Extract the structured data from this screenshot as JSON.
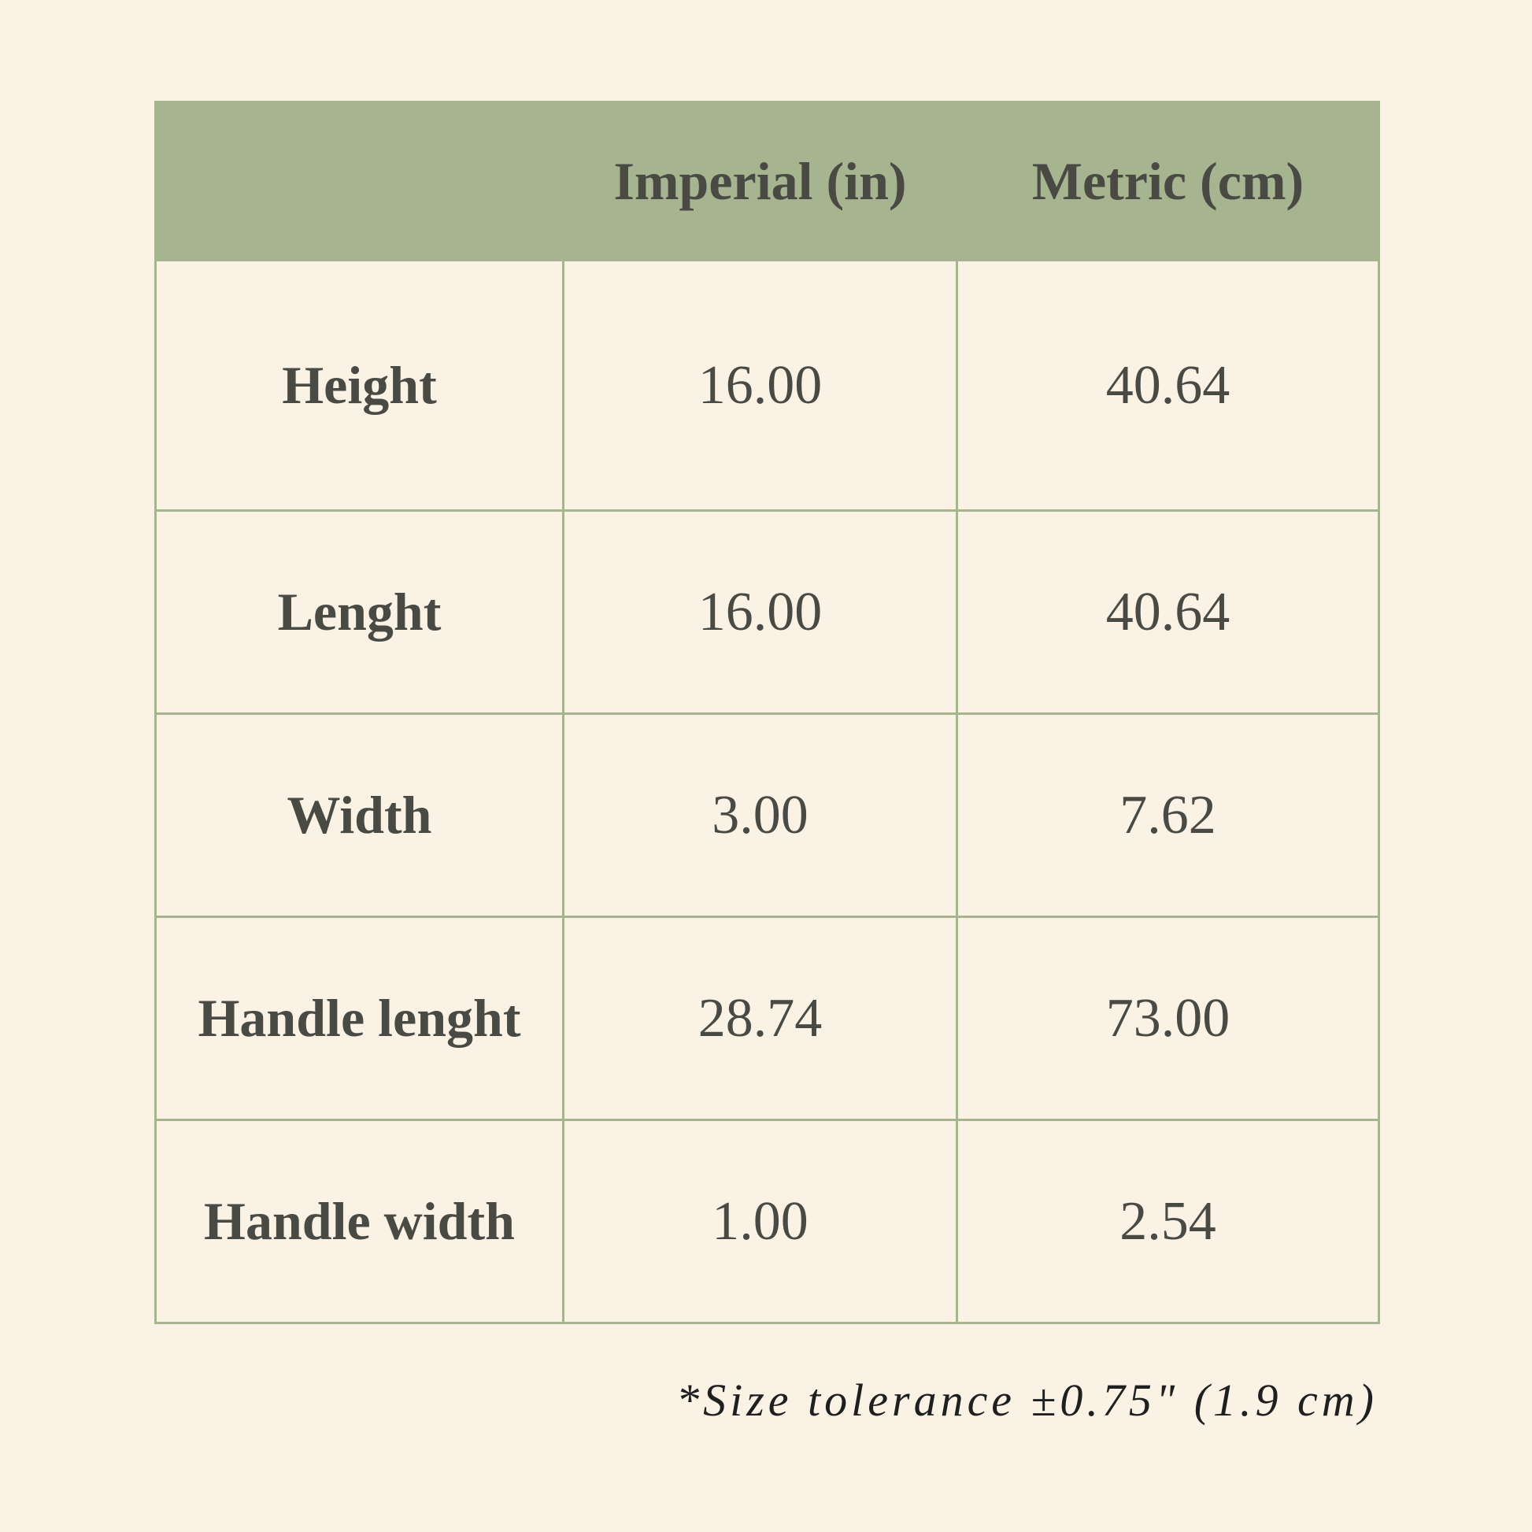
{
  "colors": {
    "background": "#f9f2e5",
    "header": "#a6b490",
    "border": "#a6b490",
    "text": "#4a4a45"
  },
  "table": {
    "headers": [
      "",
      "Imperial (in)",
      "Metric (cm)"
    ],
    "rows": [
      {
        "label": "Height",
        "imperial": "16.00",
        "metric": "40.64"
      },
      {
        "label": "Lenght",
        "imperial": "16.00",
        "metric": "40.64"
      },
      {
        "label": "Width",
        "imperial": "3.00",
        "metric": "7.62"
      },
      {
        "label": "Handle lenght",
        "imperial": "28.74",
        "metric": "73.00"
      },
      {
        "label": "Handle width",
        "imperial": "1.00",
        "metric": "2.54"
      }
    ]
  },
  "footnote": "*Size tolerance ±0.75\" (1.9 cm)"
}
